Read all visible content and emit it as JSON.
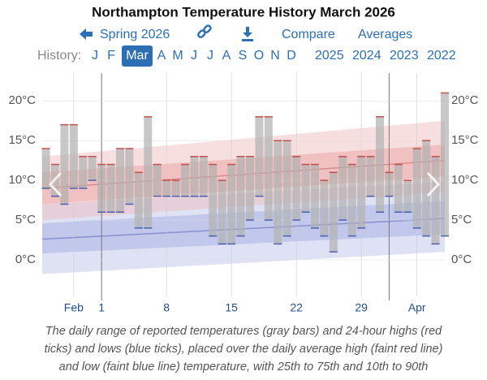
{
  "chart_data": {
    "type": "range",
    "title": "Northampton Temperature History March 2026",
    "nav": {
      "back": "Spring 2026",
      "compare": "Compare",
      "averages": "Averages"
    },
    "history": {
      "label": "History:",
      "months": [
        "J",
        "F",
        "Mar",
        "A",
        "M",
        "J",
        "J",
        "A",
        "S",
        "O",
        "N",
        "D"
      ],
      "selected": 2,
      "years": [
        "2025",
        "2024",
        "2023",
        "2022"
      ]
    },
    "x": [
      -6,
      -5,
      -4,
      -3,
      -2,
      -1,
      0,
      1,
      2,
      3,
      4,
      5,
      6,
      7,
      8,
      9,
      10,
      11,
      12,
      13,
      14,
      15,
      16,
      17,
      18,
      19,
      20,
      21,
      22,
      23,
      24,
      25,
      26,
      27,
      28,
      29,
      30,
      31,
      32,
      33,
      34,
      35,
      36,
      37
    ],
    "high": [
      14,
      12,
      17,
      17,
      13,
      13,
      12,
      12,
      14,
      14,
      11,
      18,
      12,
      10,
      10,
      12,
      13,
      13,
      12,
      10,
      12,
      13,
      13,
      18,
      18,
      15,
      15,
      13,
      12,
      12,
      10,
      11,
      13,
      12,
      13,
      13,
      18,
      11,
      12,
      10,
      14,
      15,
      13,
      21
    ],
    "low": [
      9,
      8,
      7,
      9,
      9,
      10,
      6,
      6,
      6,
      7,
      4,
      4,
      8,
      8,
      8,
      8,
      8,
      8,
      3,
      2,
      2,
      3,
      5,
      8,
      5,
      2,
      3,
      5,
      6,
      4,
      3,
      1,
      5,
      3,
      4,
      8,
      6,
      8,
      6,
      6,
      4,
      3,
      2,
      3
    ],
    "bar_color": "#b0b0b0",
    "high_color": "#c0504d",
    "low_color": "#4f5fb0",
    "normal_x": [
      -6.4,
      37
    ],
    "avg_high": [
      9,
      12.5
    ],
    "high_p25": [
      7,
      10.5
    ],
    "high_p75": [
      11,
      14.5
    ],
    "high_p10": [
      5,
      8.5
    ],
    "high_p90": [
      13,
      17.5
    ],
    "avg_low": [
      2.6,
      5.2
    ],
    "low_p25": [
      0.8,
      3.2
    ],
    "low_p75": [
      4.6,
      7.4
    ],
    "low_p10": [
      -1.8,
      1
    ],
    "low_p90": [
      7,
      9.8
    ],
    "xlim": [
      -6.4,
      37
    ],
    "ylim": [
      -4.6,
      23.5
    ],
    "xticks": [
      {
        "value": -3,
        "label": "Feb"
      },
      {
        "value": 0,
        "label": "1"
      },
      {
        "value": 7,
        "label": "8"
      },
      {
        "value": 14,
        "label": "15"
      },
      {
        "value": 21,
        "label": "22"
      },
      {
        "value": 28,
        "label": "29"
      },
      {
        "value": 34,
        "label": "Apr"
      }
    ],
    "month_starts": [
      0,
      31
    ],
    "yticks": [
      {
        "value": 0,
        "label": "0°C"
      },
      {
        "value": 5,
        "label": "5°C"
      },
      {
        "value": 10,
        "label": "10°C"
      },
      {
        "value": 15,
        "label": "15°C"
      },
      {
        "value": 20,
        "label": "20°C"
      }
    ],
    "caption_lines": [
      "The daily range of reported temperatures (gray bars) and 24-hour highs (red",
      "ticks) and lows (blue ticks), placed over the daily average high (faint red line)",
      "and low (faint blue line) temperature, with 25th to 75th and 10th to 90th"
    ]
  }
}
